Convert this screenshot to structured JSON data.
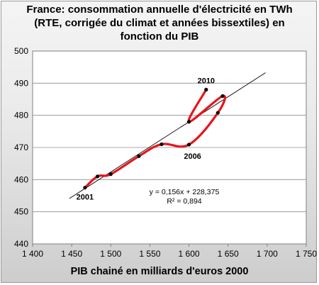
{
  "chart_data": {
    "type": "line",
    "title_lines": [
      "France: consommation annuelle  d'électricité en TWh",
      "(RTE, corrigée du climat et années bissextiles) en",
      "fonction du PIB"
    ],
    "xlabel": "PIB chainé en milliards d'euros 2000",
    "ylabel": "",
    "xlim": [
      1400,
      1750
    ],
    "ylim": [
      440,
      500
    ],
    "x_ticks": [
      1400,
      1450,
      1500,
      1550,
      1600,
      1650,
      1700,
      1750
    ],
    "x_tick_labels": [
      "1 400",
      "1 450",
      "1 500",
      "1 550",
      "1 600",
      "1 650",
      "1 700",
      "1 750"
    ],
    "y_ticks": [
      440,
      450,
      460,
      470,
      480,
      490,
      500
    ],
    "y_tick_labels": [
      "440",
      "450",
      "460",
      "470",
      "480",
      "490",
      "500"
    ],
    "grid": "horizontal",
    "series": [
      {
        "color": "#e8141b",
        "x": [
          1467,
          1483,
          1500,
          1536,
          1565,
          1600,
          1637,
          1643,
          1600,
          1622
        ],
        "y": [
          457.5,
          461,
          461.7,
          467.3,
          471,
          470.9,
          480.8,
          486,
          478,
          488
        ]
      }
    ],
    "trendline": {
      "slope": 0.156,
      "intercept": 228.375,
      "x_range": [
        1447,
        1698
      ],
      "equation": "y = 0,156x + 228,375",
      "r2": "R² = 0,894"
    },
    "annotations": [
      {
        "text": "2001",
        "x": 1467,
        "y": 457.5
      },
      {
        "text": "2006",
        "x": 1600,
        "y": 470.9
      },
      {
        "text": "2010",
        "x": 1622,
        "y": 488
      }
    ]
  }
}
